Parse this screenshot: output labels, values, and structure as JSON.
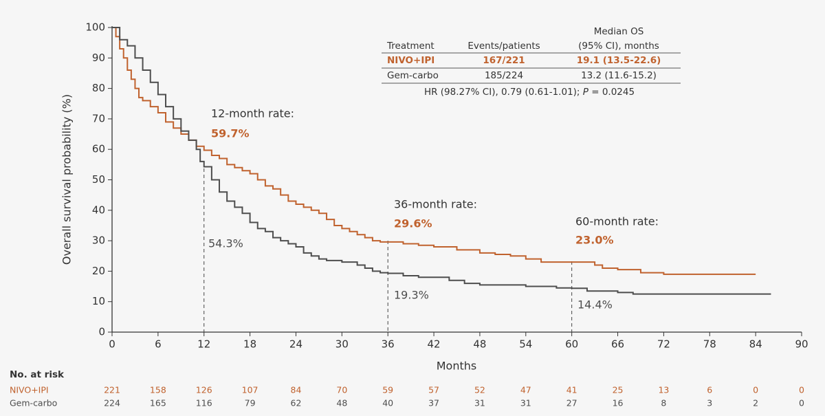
{
  "chart_data": {
    "type": "step",
    "y_label": "Overall survival probability (%)",
    "x_label": "Months",
    "xlim": [
      0,
      90
    ],
    "xticks": [
      0,
      6,
      12,
      18,
      24,
      30,
      36,
      42,
      48,
      54,
      60,
      66,
      72,
      78,
      84,
      90
    ],
    "ylim": [
      0,
      100
    ],
    "yticks": [
      0,
      10,
      20,
      30,
      40,
      50,
      60,
      70,
      80,
      90,
      100
    ],
    "series": [
      {
        "name": "NIVO+IPI",
        "color": "#c0622e",
        "x": [
          0,
          0.5,
          1,
          1.5,
          2,
          2.5,
          3,
          3.5,
          4,
          5,
          6,
          7,
          8,
          9,
          10,
          11,
          12,
          13,
          14,
          15,
          16,
          17,
          18,
          19,
          20,
          21,
          22,
          23,
          24,
          25,
          26,
          27,
          28,
          29,
          30,
          31,
          32,
          33,
          34,
          35,
          38,
          40,
          42,
          45,
          48,
          50,
          52,
          54,
          56,
          60,
          63,
          64,
          66,
          69,
          72,
          84
        ],
        "values": [
          100,
          97,
          93,
          90,
          86,
          83,
          80,
          77,
          76,
          74,
          72,
          69,
          67,
          65,
          63,
          61,
          59.7,
          58,
          57,
          55,
          54,
          53,
          52,
          50,
          48,
          47,
          45,
          43,
          42,
          41,
          40,
          39,
          37,
          35,
          34,
          33,
          32,
          31,
          30,
          29.6,
          29,
          28.5,
          28,
          27,
          26,
          25.5,
          25,
          24,
          23,
          23,
          22,
          21,
          20.5,
          19.5,
          19,
          19
        ]
      },
      {
        "name": "Gem-carbo",
        "color": "#4d4d4d",
        "x": [
          0,
          1,
          2,
          3,
          4,
          5,
          6,
          7,
          8,
          9,
          10,
          11,
          11.5,
          12,
          13,
          14,
          15,
          16,
          17,
          18,
          19,
          20,
          21,
          22,
          23,
          24,
          25,
          26,
          27,
          28,
          30,
          32,
          33,
          34,
          35,
          36,
          38,
          40,
          44,
          46,
          48,
          54,
          58,
          60,
          62,
          66,
          68,
          86
        ],
        "values": [
          100,
          96,
          94,
          90,
          86,
          82,
          78,
          74,
          70,
          66,
          63,
          60,
          56,
          54.3,
          50,
          46,
          43,
          41,
          39,
          36,
          34,
          33,
          31,
          30,
          29,
          28,
          26,
          25,
          24,
          23.5,
          23,
          22,
          21,
          20,
          19.5,
          19.3,
          18.5,
          18,
          17,
          16,
          15.5,
          15,
          14.5,
          14.4,
          13.5,
          13,
          12.5,
          12.5
        ]
      }
    ],
    "landmarks": [
      {
        "x": 12,
        "title": "12-month rate:",
        "upper": "59.7%",
        "lower": "54.3%"
      },
      {
        "x": 36,
        "title": "36-month rate:",
        "upper": "29.6%",
        "lower": "19.3%"
      },
      {
        "x": 60,
        "title": "60-month rate:",
        "upper": "23.0%",
        "lower": "14.4%"
      }
    ],
    "inset_table": {
      "header": [
        "Treatment",
        "Events/patients",
        "Median OS",
        "(95% CI), months"
      ],
      "rows": [
        [
          "NIVO+IPI",
          "167/221",
          "19.1 (13.5-22.6)"
        ],
        [
          "Gem-carbo",
          "185/224",
          "13.2 (11.6-15.2)"
        ]
      ],
      "footnote": [
        "HR (98.27% CI), 0.79 (0.61-1.01); ",
        "P",
        " = 0.0245"
      ]
    },
    "at_risk": {
      "title": "No. at risk",
      "rows": [
        {
          "name": "NIVO+IPI",
          "values": [
            221,
            158,
            126,
            107,
            84,
            70,
            59,
            57,
            52,
            47,
            41,
            25,
            13,
            6,
            0,
            0
          ]
        },
        {
          "name": "Gem-carbo",
          "values": [
            224,
            165,
            116,
            79,
            62,
            48,
            40,
            37,
            31,
            31,
            27,
            16,
            8,
            3,
            2,
            0
          ]
        }
      ]
    }
  }
}
